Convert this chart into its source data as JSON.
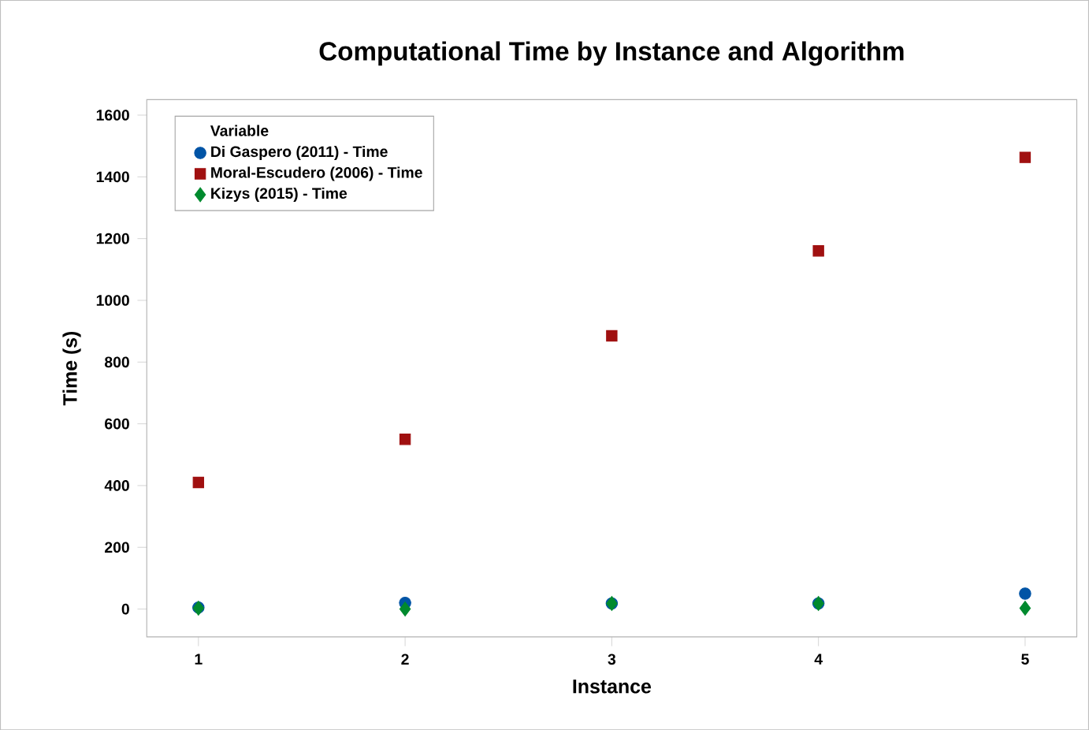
{
  "chart_data": {
    "type": "scatter",
    "title": "Computational Time by Instance and Algorithm",
    "xlabel": "Instance",
    "ylabel": "Time (s)",
    "legend_title": "Variable",
    "legend": "top left",
    "grid": false,
    "x": [
      1,
      2,
      3,
      4,
      5
    ],
    "xlim": [
      0.75,
      5.25
    ],
    "xticks": [
      1,
      2,
      3,
      4,
      5
    ],
    "ylim": [
      -90,
      1650
    ],
    "yticks": [
      0,
      200,
      400,
      600,
      800,
      1000,
      1200,
      1400,
      1600
    ],
    "series": [
      {
        "name": "Di Gaspero (2011) - Time",
        "color": "#0054a6",
        "marker": "circle",
        "values": [
          5,
          20,
          18,
          18,
          50
        ]
      },
      {
        "name": "Moral-Escudero (2006) - Time",
        "color": "#a01010",
        "marker": "square",
        "values": [
          410,
          550,
          885,
          1160,
          1463
        ]
      },
      {
        "name": "Kizys (2015) - Time",
        "color": "#008a2e",
        "marker": "diamond",
        "values": [
          3,
          0,
          18,
          18,
          3
        ]
      }
    ]
  }
}
